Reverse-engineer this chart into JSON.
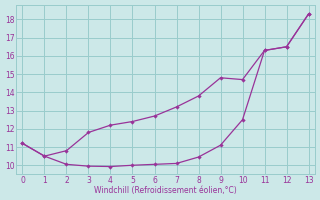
{
  "line_lower_x": [
    0,
    1,
    2,
    3,
    4,
    5,
    6,
    7,
    8,
    9,
    10,
    11,
    12,
    13
  ],
  "line_lower_y": [
    11.2,
    10.5,
    10.05,
    9.95,
    9.93,
    10.0,
    10.05,
    10.1,
    10.45,
    11.1,
    12.5,
    16.3,
    16.5,
    18.3
  ],
  "line_upper_x": [
    0,
    1,
    2,
    3,
    4,
    5,
    6,
    7,
    8,
    9,
    10,
    11,
    12,
    13
  ],
  "line_upper_y": [
    11.2,
    10.5,
    10.8,
    11.8,
    12.2,
    12.4,
    12.7,
    13.2,
    13.8,
    14.8,
    14.7,
    16.3,
    16.5,
    18.3
  ],
  "line_color": "#993399",
  "bg_color": "#cce8e8",
  "grid_color": "#99cccc",
  "xlabel": "Windchill (Refroidissement éolien,°C)",
  "xlabel_color": "#993399",
  "yticks": [
    10,
    11,
    12,
    13,
    14,
    15,
    16,
    17,
    18
  ],
  "xticks": [
    0,
    1,
    2,
    3,
    4,
    5,
    6,
    7,
    8,
    9,
    10,
    11,
    12,
    13
  ],
  "xlim": [
    -0.3,
    13.3
  ],
  "ylim": [
    9.5,
    18.8
  ]
}
